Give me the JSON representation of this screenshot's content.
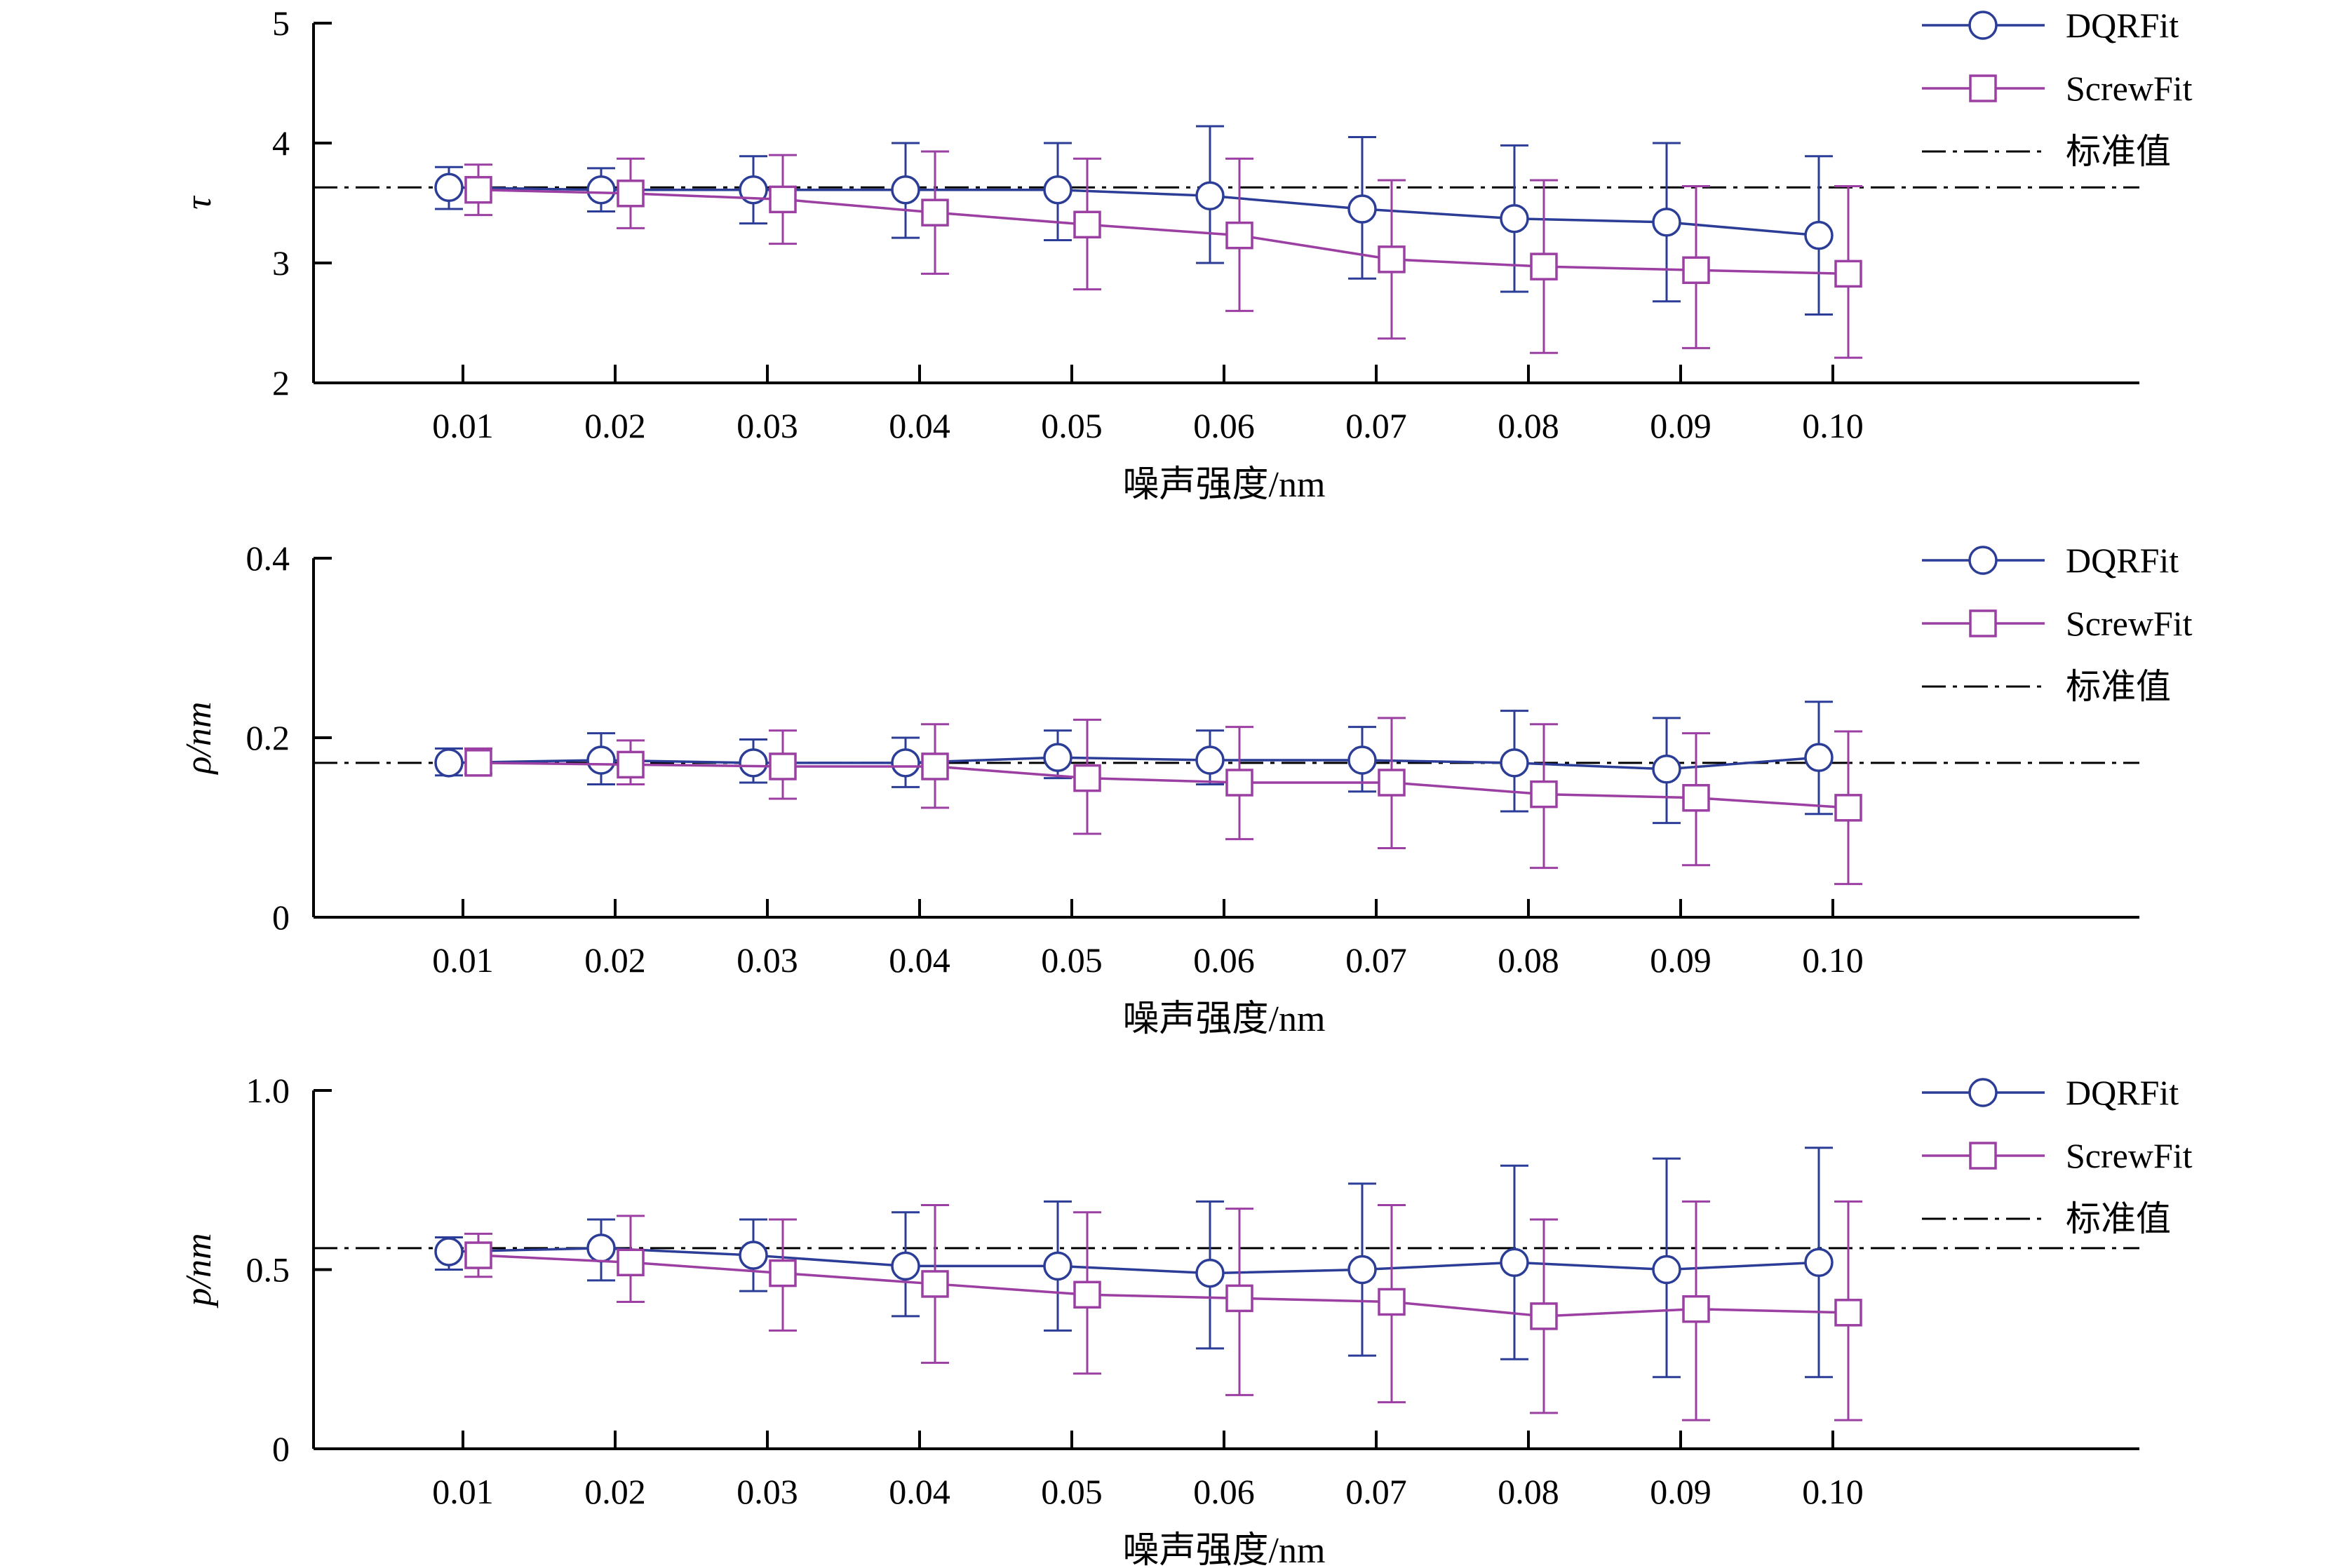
{
  "chart_data": [
    {
      "type": "line",
      "ylabel": "τ",
      "xlabel": "噪声强度/nm",
      "x_tick_labels": [
        "0.01",
        "0.02",
        "0.03",
        "0.04",
        "0.05",
        "0.06",
        "0.07",
        "0.08",
        "0.09",
        "0.10"
      ],
      "ylim": [
        2,
        5
      ],
      "y_ticks": [
        2,
        3,
        4,
        5
      ],
      "y_tick_labels": [
        "2",
        "3",
        "4",
        "5"
      ],
      "standard_value": 3.63,
      "series": [
        {
          "name": "DQRFit",
          "color": "#2b3d96",
          "marker": "circle",
          "values": [
            3.63,
            3.61,
            3.61,
            3.61,
            3.61,
            3.56,
            3.45,
            3.37,
            3.34,
            3.23
          ],
          "err_low": [
            3.45,
            3.43,
            3.33,
            3.21,
            3.19,
            3.0,
            2.87,
            2.76,
            2.68,
            2.57
          ],
          "err_high": [
            3.8,
            3.79,
            3.89,
            4.0,
            4.0,
            4.14,
            4.05,
            3.98,
            4.0,
            3.89
          ]
        },
        {
          "name": "ScrewFit",
          "color": "#9b3fa3",
          "marker": "square",
          "values": [
            3.61,
            3.58,
            3.53,
            3.42,
            3.32,
            3.23,
            3.03,
            2.97,
            2.94,
            2.91
          ],
          "err_low": [
            3.4,
            3.29,
            3.16,
            2.91,
            2.78,
            2.6,
            2.37,
            2.25,
            2.29,
            2.21
          ],
          "err_high": [
            3.82,
            3.87,
            3.9,
            3.93,
            3.87,
            3.87,
            3.69,
            3.69,
            3.64,
            3.64
          ]
        }
      ],
      "legend": {
        "placement": "top-right",
        "entries": [
          "DQRFit",
          "ScrewFit",
          "标准值"
        ]
      }
    },
    {
      "type": "line",
      "ylabel": "ρ/nm",
      "xlabel": "噪声强度/nm",
      "x_tick_labels": [
        "0.01",
        "0.02",
        "0.03",
        "0.04",
        "0.05",
        "0.06",
        "0.07",
        "0.08",
        "0.09",
        "0.10"
      ],
      "ylim": [
        0,
        0.4
      ],
      "y_ticks": [
        0,
        0.2,
        0.4
      ],
      "y_tick_labels": [
        "0",
        "0.2",
        "0.4"
      ],
      "standard_value": 0.172,
      "series": [
        {
          "name": "DQRFit",
          "color": "#2b3d96",
          "marker": "circle",
          "values": [
            0.172,
            0.175,
            0.172,
            0.172,
            0.178,
            0.175,
            0.175,
            0.172,
            0.165,
            0.178
          ],
          "err_low": [
            0.158,
            0.148,
            0.15,
            0.145,
            0.155,
            0.148,
            0.14,
            0.118,
            0.105,
            0.115
          ],
          "err_high": [
            0.188,
            0.205,
            0.198,
            0.2,
            0.208,
            0.208,
            0.212,
            0.23,
            0.222,
            0.24
          ]
        },
        {
          "name": "ScrewFit",
          "color": "#9b3fa3",
          "marker": "square",
          "values": [
            0.172,
            0.17,
            0.168,
            0.168,
            0.155,
            0.15,
            0.15,
            0.137,
            0.133,
            0.122
          ],
          "err_low": [
            0.16,
            0.148,
            0.132,
            0.122,
            0.093,
            0.087,
            0.077,
            0.055,
            0.058,
            0.037
          ],
          "err_high": [
            0.188,
            0.197,
            0.208,
            0.215,
            0.22,
            0.212,
            0.222,
            0.215,
            0.205,
            0.207
          ]
        }
      ],
      "legend": {
        "placement": "top-right",
        "entries": [
          "DQRFit",
          "ScrewFit",
          "标准值"
        ]
      }
    },
    {
      "type": "line",
      "ylabel": "p/nm",
      "xlabel": "噪声强度/nm",
      "x_tick_labels": [
        "0.01",
        "0.02",
        "0.03",
        "0.04",
        "0.05",
        "0.06",
        "0.07",
        "0.08",
        "0.09",
        "0.10"
      ],
      "ylim": [
        0,
        1.0
      ],
      "y_ticks": [
        0,
        0.5,
        1.0
      ],
      "y_tick_labels": [
        "0",
        "0.5",
        "1.0"
      ],
      "standard_value": 0.56,
      "series": [
        {
          "name": "DQRFit",
          "color": "#2b3d96",
          "marker": "circle",
          "values": [
            0.55,
            0.56,
            0.54,
            0.51,
            0.51,
            0.49,
            0.5,
            0.52,
            0.5,
            0.52
          ],
          "err_low": [
            0.5,
            0.47,
            0.44,
            0.37,
            0.33,
            0.28,
            0.26,
            0.25,
            0.2,
            0.2
          ],
          "err_high": [
            0.59,
            0.64,
            0.64,
            0.66,
            0.69,
            0.69,
            0.74,
            0.79,
            0.81,
            0.84
          ]
        },
        {
          "name": "ScrewFit",
          "color": "#9b3fa3",
          "marker": "square",
          "values": [
            0.54,
            0.52,
            0.49,
            0.46,
            0.43,
            0.42,
            0.41,
            0.37,
            0.39,
            0.38
          ],
          "err_low": [
            0.48,
            0.41,
            0.33,
            0.24,
            0.21,
            0.15,
            0.13,
            0.1,
            0.08,
            0.08
          ],
          "err_high": [
            0.6,
            0.65,
            0.64,
            0.68,
            0.66,
            0.67,
            0.68,
            0.64,
            0.69,
            0.69
          ]
        }
      ],
      "legend": {
        "placement": "top-right",
        "entries": [
          "DQRFit",
          "ScrewFit",
          "标准值"
        ]
      }
    }
  ]
}
